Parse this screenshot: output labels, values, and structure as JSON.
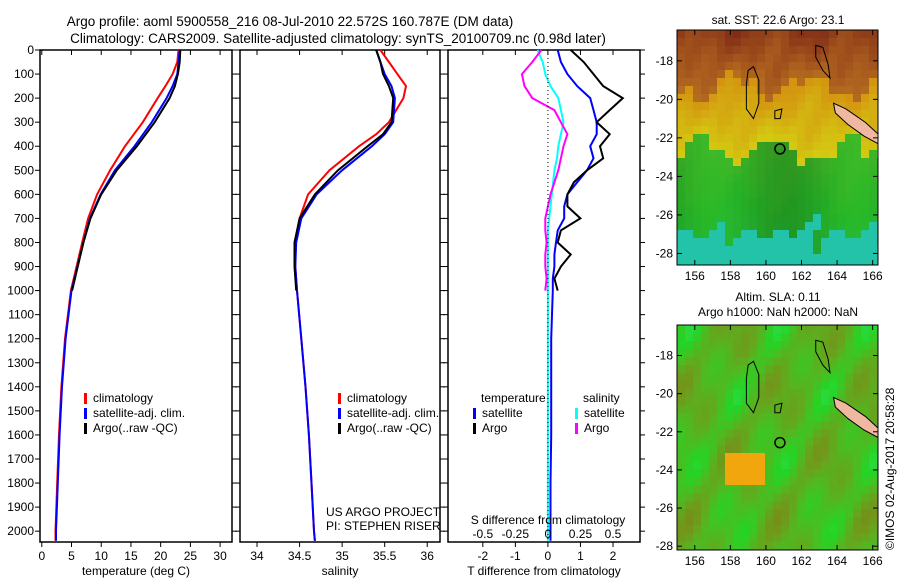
{
  "title_line1": "Argo profile: aoml 5900558_216 08-Jul-2010 22.572S 160.787E (DM data)",
  "title_line2": "Climatology: CARS2009. Satellite-adjusted climatology: synTS_20100709.nc (0.98d later)",
  "credits": "US ARGO PROJECT",
  "pi": "PI: STEPHEN RISER",
  "watermark": "©IMOS 02-Aug-2017 20:58:28",
  "colors": {
    "climatology": "#ff0000",
    "satellite": "#0000ff",
    "argo": "#000000",
    "s_satellite": "#00ffff",
    "s_argo": "#ff00ff"
  },
  "chart_data": [
    {
      "type": "line",
      "name": "temperature",
      "xlabel": "temperature (deg C)",
      "ylabel": "",
      "xlim": [
        -0.3,
        32
      ],
      "ylim": [
        2045,
        0
      ],
      "xticks": [
        0,
        5,
        10,
        15,
        20,
        25,
        30
      ],
      "yticks": [
        0,
        100,
        200,
        300,
        400,
        500,
        600,
        700,
        800,
        900,
        1000,
        1100,
        1200,
        1300,
        1400,
        1500,
        1600,
        1700,
        1800,
        1900,
        2000
      ],
      "legend": [
        "climatology",
        "satellite-adj. clim.",
        "Argo(..raw -QC)"
      ],
      "legend_placement": "lower-center",
      "depth": [
        0,
        50,
        100,
        150,
        200,
        300,
        400,
        500,
        600,
        700,
        800,
        1000,
        1200,
        1400,
        1600,
        1800,
        2000,
        2040
      ],
      "series": [
        {
          "name": "climatology",
          "values": [
            23,
            22.8,
            22,
            20.8,
            19.5,
            17,
            14,
            11.5,
            9.3,
            7.8,
            6.8,
            4.9,
            3.9,
            3.3,
            2.9,
            2.6,
            2.3,
            2.3
          ]
        },
        {
          "name": "satellite-adj. clim.",
          "values": [
            23.2,
            23,
            22.8,
            22,
            21,
            18.5,
            15.6,
            12.3,
            9.9,
            8.1,
            7,
            5,
            4,
            3.4,
            3,
            2.7,
            2.4,
            2.4
          ]
        },
        {
          "name": "Argo(..raw -QC)",
          "values": [
            23.3,
            23.2,
            22.9,
            22.4,
            21.5,
            19,
            16,
            12.6,
            10,
            8.2,
            7,
            5.1,
            null,
            null,
            null,
            null,
            null,
            null
          ]
        }
      ]
    },
    {
      "type": "line",
      "name": "salinity",
      "xlabel": "salinity",
      "xlim": [
        33.8,
        36.15
      ],
      "ylim": [
        2045,
        0
      ],
      "xticks": [
        34,
        34.5,
        35,
        35.5,
        36
      ],
      "legend": [
        "climatology",
        "satellite-adj. clim.",
        "Argo(..raw -QC)"
      ],
      "legend_placement": "lower-right",
      "depth": [
        0,
        50,
        100,
        150,
        200,
        300,
        350,
        400,
        500,
        600,
        700,
        800,
        900,
        1000,
        1200,
        1400,
        1600,
        1800,
        2000,
        2040
      ],
      "series": [
        {
          "name": "climatology",
          "values": [
            35.45,
            35.55,
            35.65,
            35.75,
            35.72,
            35.55,
            35.4,
            35.2,
            34.85,
            34.6,
            34.5,
            34.45,
            34.45,
            34.47,
            34.52,
            34.57,
            34.61,
            34.64,
            34.67,
            34.68
          ]
        },
        {
          "name": "satellite-adj. clim.",
          "values": [
            35.4,
            35.45,
            35.5,
            35.58,
            35.62,
            35.6,
            35.5,
            35.35,
            35.0,
            34.7,
            34.52,
            34.46,
            34.45,
            34.47,
            34.52,
            34.57,
            34.61,
            34.64,
            34.67,
            34.68
          ]
        },
        {
          "name": "Argo(..raw -QC)",
          "values": [
            35.4,
            35.45,
            35.48,
            35.55,
            35.6,
            35.58,
            35.48,
            35.3,
            34.95,
            34.68,
            34.5,
            34.44,
            34.44,
            34.46,
            null,
            null,
            null,
            null,
            null,
            null
          ]
        }
      ]
    },
    {
      "type": "line",
      "name": "difference",
      "xlabel": "T difference from climatology",
      "x2label": "S difference from climatology",
      "xlim": [
        -3.07,
        2.83
      ],
      "ylim": [
        2045,
        0
      ],
      "xticks": [
        -2,
        -1,
        0,
        1,
        2
      ],
      "x2ticks": [
        -0.5,
        -0.25,
        0,
        0.25,
        0.5
      ],
      "legend_temperature": {
        "title": "temperature",
        "items": [
          "satellite",
          "Argo"
        ]
      },
      "legend_salinity": {
        "title": "salinity",
        "items": [
          "satellite",
          "Argo"
        ]
      },
      "depth": [
        0,
        50,
        100,
        150,
        200,
        250,
        300,
        350,
        400,
        450,
        500,
        550,
        600,
        650,
        700,
        750,
        800,
        850,
        900,
        950,
        1000,
        1200,
        1400,
        1600,
        1800,
        2000,
        2040
      ],
      "series": [
        {
          "name": "T satellite",
          "values": [
            0.3,
            0.4,
            0.6,
            0.9,
            1.3,
            1.4,
            1.5,
            1.5,
            1.3,
            1.4,
            1.2,
            0.9,
            0.6,
            0.5,
            0.5,
            0.3,
            0.25,
            0.2,
            0.2,
            0.15,
            0.15,
            0.1,
            0.1,
            0.1,
            0.08,
            0.08,
            0.08
          ]
        },
        {
          "name": "T Argo",
          "values": [
            0.7,
            1.1,
            1.4,
            1.7,
            2.3,
            1.9,
            1.5,
            1.9,
            1.6,
            1.7,
            1.2,
            0.8,
            0.6,
            0.6,
            1.0,
            0.4,
            0.3,
            0.7,
            0.4,
            0.2,
            0.3,
            null,
            null,
            null,
            null,
            null,
            null
          ]
        },
        {
          "name": "S satellite",
          "values": [
            -0.08,
            -0.04,
            -0.02,
            0.02,
            0.08,
            0.1,
            0.12,
            0.1,
            0.08,
            0.07,
            0.05,
            0.04,
            0.03,
            0.02,
            0.01,
            0,
            0,
            0,
            0,
            0,
            0,
            0,
            0,
            0,
            0,
            0,
            0
          ]
        },
        {
          "name": "S Argo",
          "values": [
            -0.05,
            -0.12,
            -0.2,
            -0.18,
            -0.12,
            0.05,
            0.1,
            0.15,
            0.12,
            0.1,
            0.08,
            0.05,
            0.02,
            0.0,
            -0.02,
            -0.02,
            -0.01,
            -0.02,
            -0.02,
            -0.01,
            -0.02,
            null,
            null,
            null,
            null,
            null,
            null
          ]
        }
      ]
    },
    {
      "type": "heatmap",
      "name": "sst-map",
      "title": "sat. SST: 22.6 Argo: 23.1",
      "xlim": [
        155,
        166.3
      ],
      "ylim": [
        -28.6,
        -16.4
      ],
      "xticks": [
        156,
        158,
        160,
        162,
        164,
        166
      ],
      "yticks": [
        -18,
        -20,
        -22,
        -24,
        -26,
        -28
      ],
      "float_position": [
        160.787,
        -22.572
      ]
    },
    {
      "type": "heatmap",
      "name": "sla-map",
      "title": "Altim. SLA: 0.11",
      "subtitle": "Argo h1000: NaN h2000: NaN",
      "xlim": [
        155,
        166.3
      ],
      "ylim": [
        -28.2,
        -16.4
      ],
      "xticks": [
        156,
        158,
        160,
        162,
        164,
        166
      ],
      "yticks": [
        -18,
        -20,
        -22,
        -24,
        -26,
        -28
      ],
      "float_position": [
        160.787,
        -22.572
      ]
    }
  ]
}
